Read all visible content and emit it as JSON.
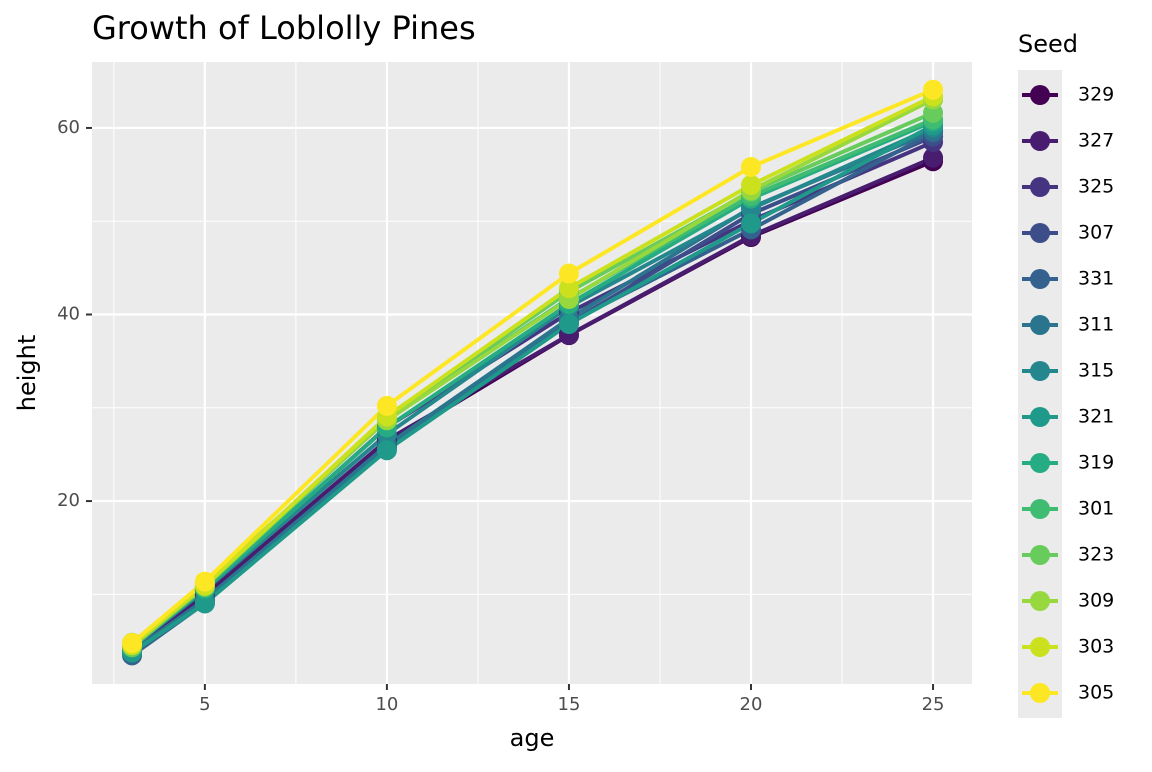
{
  "chart_data": {
    "type": "line",
    "title": "Growth of Loblolly Pines",
    "x_label": "age",
    "y_label": "height",
    "legend_title": "Seed",
    "x": [
      3,
      5,
      10,
      15,
      20,
      25
    ],
    "xlim": [
      1.9,
      26.07
    ],
    "xticks": [
      5,
      10,
      15,
      20,
      25
    ],
    "ylim": [
      0.39,
      67.07
    ],
    "yticks": [
      20,
      40,
      60
    ],
    "grid": true,
    "minor_grid": true,
    "series": [
      {
        "name": "329",
        "color": "#440154",
        "values": [
          3.93,
          9.34,
          26.08,
          37.79,
          48.31,
          56.43
        ]
      },
      {
        "name": "327",
        "color": "#481C6E",
        "values": [
          4.12,
          9.92,
          26.54,
          37.82,
          48.43,
          56.81
        ]
      },
      {
        "name": "325",
        "color": "#453581",
        "values": [
          4.38,
          10.48,
          27.93,
          40.2,
          50.06,
          58.49
        ]
      },
      {
        "name": "307",
        "color": "#3D4D8A",
        "values": [
          3.91,
          9.48,
          25.66,
          39.07,
          50.78,
          59.07
        ]
      },
      {
        "name": "331",
        "color": "#34618D",
        "values": [
          3.46,
          9.05,
          25.85,
          39.15,
          49.12,
          59.49
        ]
      },
      {
        "name": "311",
        "color": "#2B748E",
        "values": [
          3.88,
          9.4,
          25.99,
          39.55,
          51.46,
          59.64
        ]
      },
      {
        "name": "315",
        "color": "#24878E",
        "values": [
          4.32,
          10.43,
          27.16,
          40.85,
          51.33,
          60.07
        ]
      },
      {
        "name": "321",
        "color": "#1F998A",
        "values": [
          3.77,
          9.03,
          25.45,
          38.98,
          49.76,
          60.28
        ]
      },
      {
        "name": "319",
        "color": "#25AC82",
        "values": [
          4.57,
          10.57,
          27.9,
          41.13,
          52.43,
          60.69
        ]
      },
      {
        "name": "301",
        "color": "#40BC72",
        "values": [
          4.51,
          10.89,
          28.72,
          41.74,
          52.7,
          60.92
        ]
      },
      {
        "name": "323",
        "color": "#67CC5C",
        "values": [
          4.33,
          10.79,
          28.97,
          42.44,
          53.17,
          61.62
        ]
      },
      {
        "name": "309",
        "color": "#97D83F",
        "values": [
          4.81,
          11.2,
          28.66,
          41.66,
          53.31,
          63.05
        ]
      },
      {
        "name": "303",
        "color": "#CBE11E",
        "values": [
          4.55,
          10.92,
          29.07,
          42.83,
          53.88,
          63.39
        ]
      },
      {
        "name": "305",
        "color": "#FDE725",
        "values": [
          4.79,
          11.37,
          30.21,
          44.4,
          55.82,
          64.1
        ]
      }
    ]
  }
}
